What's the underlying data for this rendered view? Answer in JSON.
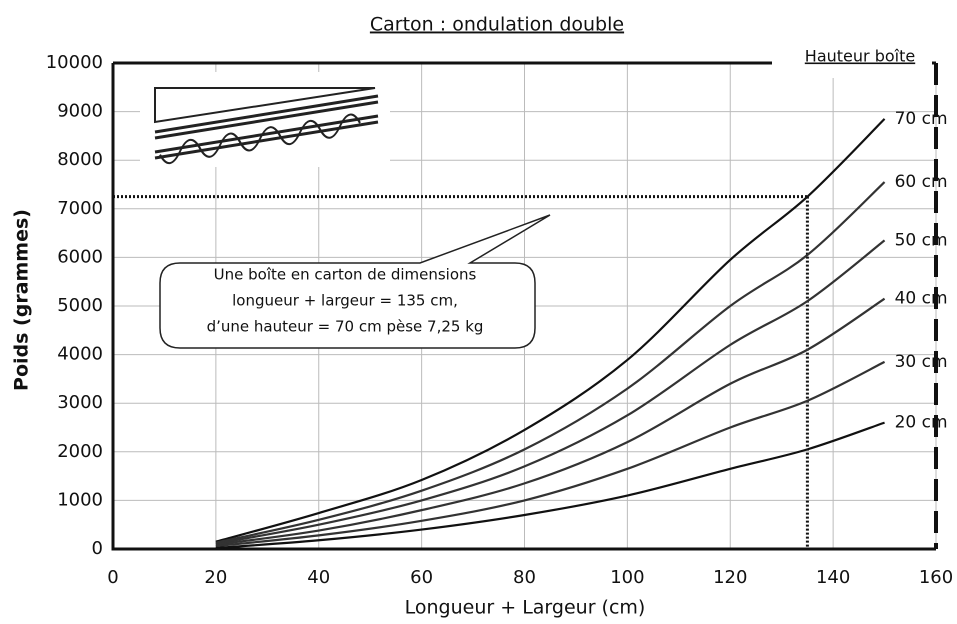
{
  "chart_data": {
    "type": "line",
    "title": "Carton : ondulation double",
    "legend_title": "Hauteur boîte",
    "xlabel": "Longueur + Largeur (cm)",
    "ylabel": "Poids (grammes)",
    "x": [
      20,
      40,
      60,
      80,
      100,
      120,
      135,
      150
    ],
    "series": [
      {
        "name": "70 cm",
        "color": "#111111",
        "values": [
          150,
          740,
          1420,
          2450,
          3890,
          5950,
          7250,
          8850
        ]
      },
      {
        "name": "60 cm",
        "color": "#333333",
        "values": [
          130,
          600,
          1200,
          2050,
          3300,
          5000,
          6050,
          7550
        ]
      },
      {
        "name": "50 cm",
        "color": "#333333",
        "values": [
          110,
          500,
          1000,
          1700,
          2750,
          4200,
          5100,
          6350
        ]
      },
      {
        "name": "40 cm",
        "color": "#333333",
        "values": [
          90,
          380,
          800,
          1350,
          2200,
          3400,
          4100,
          5150
        ]
      },
      {
        "name": "30 cm",
        "color": "#333333",
        "values": [
          60,
          280,
          580,
          1000,
          1650,
          2500,
          3050,
          3850
        ]
      },
      {
        "name": "20 cm",
        "color": "#111111",
        "values": [
          20,
          180,
          400,
          700,
          1100,
          1650,
          2050,
          2600
        ]
      }
    ],
    "xlim": [
      0,
      160
    ],
    "xticks": [
      0,
      20,
      40,
      60,
      80,
      100,
      120,
      140,
      160
    ],
    "ylim": [
      0,
      10000
    ],
    "yticks": [
      0,
      1000,
      2000,
      3000,
      4000,
      5000,
      6000,
      7000,
      8000,
      9000,
      10000
    ],
    "grid": true,
    "reference": {
      "x": 135,
      "y": 7250
    },
    "annotation": [
      "Une boîte en carton de dimensions",
      "longueur + largeur = 135 cm,",
      "d’une hauteur = 70 cm pèse 7,25 kg"
    ]
  }
}
